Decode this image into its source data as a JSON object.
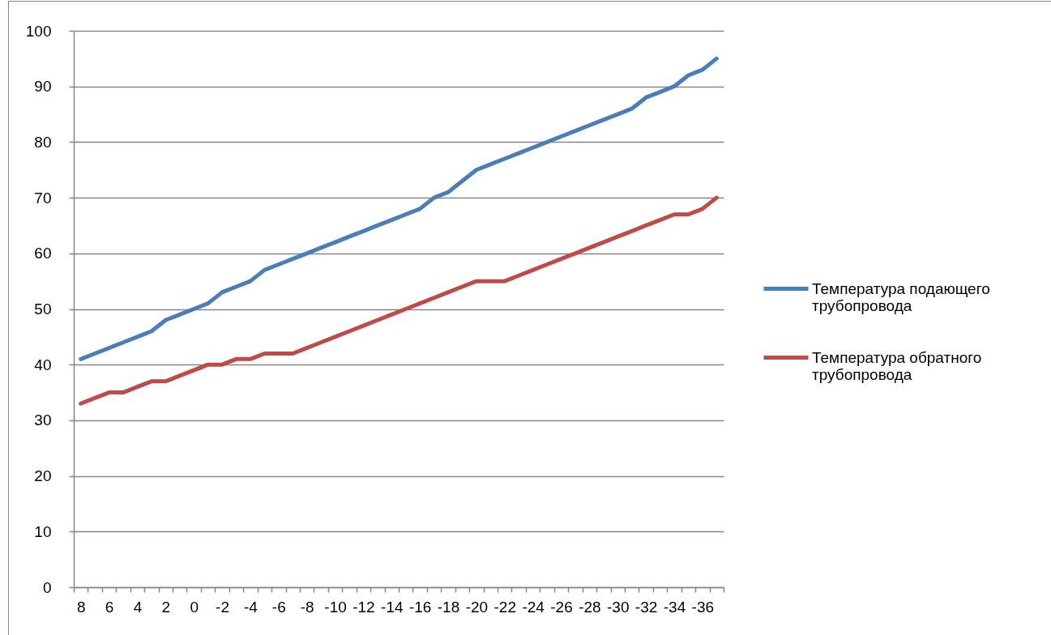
{
  "chart_data": {
    "type": "line",
    "categories": [
      "8",
      null,
      "6",
      null,
      "4",
      null,
      "2",
      null,
      "0",
      null,
      "-2",
      null,
      "-4",
      null,
      "-6",
      null,
      "-8",
      null,
      "-10",
      null,
      "-12",
      null,
      "-14",
      null,
      "-16",
      null,
      "-18",
      null,
      "-20",
      null,
      "-22",
      null,
      "-24",
      null,
      "-26",
      null,
      "-28",
      null,
      "-30",
      null,
      "-32",
      null,
      "-34",
      null,
      "-36",
      null
    ],
    "series": [
      {
        "name": "Температура подающего трубопровода",
        "color": "#4a7ebb",
        "values": [
          41,
          42,
          43,
          44,
          45,
          46,
          48,
          49,
          50,
          51,
          53,
          54,
          55,
          57,
          58,
          59,
          60,
          61,
          62,
          63,
          64,
          65,
          66,
          67,
          68,
          70,
          71,
          73,
          75,
          76,
          77,
          78,
          79,
          80,
          81,
          82,
          83,
          84,
          85,
          86,
          88,
          89,
          90,
          92,
          93,
          95
        ]
      },
      {
        "name": "Температура обратного трубопровода",
        "color": "#be4b48",
        "values": [
          33,
          34,
          35,
          35,
          36,
          37,
          37,
          38,
          39,
          40,
          40,
          41,
          41,
          42,
          42,
          42,
          43,
          44,
          45,
          46,
          47,
          48,
          49,
          50,
          51,
          52,
          53,
          54,
          55,
          55,
          55,
          56,
          57,
          58,
          59,
          60,
          61,
          62,
          63,
          64,
          65,
          66,
          67,
          67,
          68,
          70
        ]
      }
    ],
    "ylim": [
      0,
      100
    ],
    "yticks": [
      0,
      10,
      20,
      30,
      40,
      50,
      60,
      70,
      80,
      90,
      100
    ],
    "grid": "y",
    "legend": "right",
    "line_style": "solid"
  }
}
